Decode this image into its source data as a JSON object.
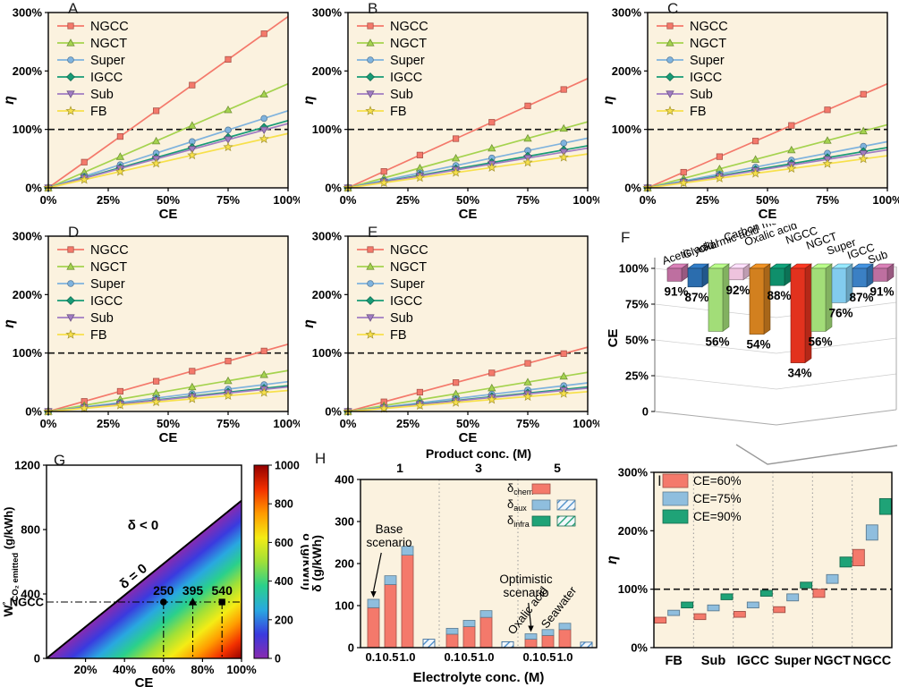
{
  "figure": {
    "background": "#ffffff",
    "plot_background": "#FBF2DF",
    "series_legend": [
      {
        "name": "NGCC",
        "color": "#F4796B",
        "marker": "square"
      },
      {
        "name": "NGCT",
        "color": "#A5D34F",
        "marker": "triangle-up"
      },
      {
        "name": "Super",
        "color": "#7FB3DE",
        "marker": "circle"
      },
      {
        "name": "IGCC",
        "color": "#189B76",
        "marker": "diamond"
      },
      {
        "name": "Sub",
        "color": "#A07CC2",
        "marker": "triangle-down"
      },
      {
        "name": "FB",
        "color": "#F7E04B",
        "marker": "star"
      }
    ]
  },
  "chart_data": [
    {
      "id": "A",
      "type": "line",
      "xlabel": "CE",
      "ylabel": "η",
      "xlim": [
        0,
        100
      ],
      "ylim": [
        0,
        300
      ],
      "xtick_vals": [
        0,
        25,
        50,
        75,
        100
      ],
      "xtick_labels": [
        "0%",
        "25%",
        "50%",
        "75%",
        "100%"
      ],
      "ytick_vals": [
        0,
        100,
        200,
        300
      ],
      "ytick_labels": [
        "0%",
        "100%",
        "200%",
        "300%"
      ],
      "reference_line_y": 100,
      "marker_xs": [
        15,
        30,
        45,
        60,
        75,
        90
      ],
      "series": [
        {
          "name": "NGCC",
          "y_at_ce100": 293
        },
        {
          "name": "NGCT",
          "y_at_ce100": 178
        },
        {
          "name": "Super",
          "y_at_ce100": 132
        },
        {
          "name": "IGCC",
          "y_at_ce100": 115
        },
        {
          "name": "Sub",
          "y_at_ce100": 110
        },
        {
          "name": "FB",
          "y_at_ce100": 93
        }
      ]
    },
    {
      "id": "B",
      "type": "line",
      "xlabel": "CE",
      "ylabel": "η",
      "xlim": [
        0,
        100
      ],
      "ylim": [
        0,
        300
      ],
      "xtick_vals": [
        0,
        25,
        50,
        75,
        100
      ],
      "xtick_labels": [
        "0%",
        "25%",
        "50%",
        "75%",
        "100%"
      ],
      "ytick_vals": [
        0,
        100,
        200,
        300
      ],
      "ytick_labels": [
        "0%",
        "100%",
        "200%",
        "300%"
      ],
      "reference_line_y": 100,
      "marker_xs": [
        15,
        30,
        45,
        60,
        75,
        90
      ],
      "series": [
        {
          "name": "NGCC",
          "y_at_ce100": 187
        },
        {
          "name": "NGCT",
          "y_at_ce100": 113
        },
        {
          "name": "Super",
          "y_at_ce100": 85
        },
        {
          "name": "IGCC",
          "y_at_ce100": 72
        },
        {
          "name": "Sub",
          "y_at_ce100": 68
        },
        {
          "name": "FB",
          "y_at_ce100": 58
        }
      ]
    },
    {
      "id": "C",
      "type": "line",
      "xlabel": "CE",
      "ylabel": "η",
      "xlim": [
        0,
        100
      ],
      "ylim": [
        0,
        300
      ],
      "xtick_vals": [
        0,
        25,
        50,
        75,
        100
      ],
      "xtick_labels": [
        "0%",
        "25%",
        "50%",
        "75%",
        "100%"
      ],
      "ytick_vals": [
        0,
        100,
        200,
        300
      ],
      "ytick_labels": [
        "0%",
        "100%",
        "200%",
        "300%"
      ],
      "reference_line_y": 100,
      "marker_xs": [
        15,
        30,
        45,
        60,
        75,
        90
      ],
      "series": [
        {
          "name": "NGCC",
          "y_at_ce100": 178
        },
        {
          "name": "NGCT",
          "y_at_ce100": 108
        },
        {
          "name": "Super",
          "y_at_ce100": 79
        },
        {
          "name": "IGCC",
          "y_at_ce100": 69
        },
        {
          "name": "Sub",
          "y_at_ce100": 65
        },
        {
          "name": "FB",
          "y_at_ce100": 55
        }
      ]
    },
    {
      "id": "D",
      "type": "line",
      "xlabel": "CE",
      "ylabel": "η",
      "xlim": [
        0,
        100
      ],
      "ylim": [
        0,
        300
      ],
      "xtick_vals": [
        0,
        25,
        50,
        75,
        100
      ],
      "xtick_labels": [
        "0%",
        "25%",
        "50%",
        "75%",
        "100%"
      ],
      "ytick_vals": [
        0,
        100,
        200,
        300
      ],
      "ytick_labels": [
        "0%",
        "100%",
        "200%",
        "300%"
      ],
      "reference_line_y": 100,
      "marker_xs": [
        15,
        30,
        45,
        60,
        75,
        90
      ],
      "series": [
        {
          "name": "NGCC",
          "y_at_ce100": 115
        },
        {
          "name": "NGCT",
          "y_at_ce100": 70
        },
        {
          "name": "Super",
          "y_at_ce100": 51
        },
        {
          "name": "IGCC",
          "y_at_ce100": 44
        },
        {
          "name": "Sub",
          "y_at_ce100": 42
        },
        {
          "name": "FB",
          "y_at_ce100": 36
        }
      ]
    },
    {
      "id": "E",
      "type": "line",
      "xlabel": "CE",
      "ylabel": "η",
      "xlim": [
        0,
        100
      ],
      "ylim": [
        0,
        300
      ],
      "xtick_vals": [
        0,
        25,
        50,
        75,
        100
      ],
      "xtick_labels": [
        "0%",
        "25%",
        "50%",
        "75%",
        "100%"
      ],
      "ytick_vals": [
        0,
        100,
        200,
        300
      ],
      "ytick_labels": [
        "0%",
        "100%",
        "200%",
        "300%"
      ],
      "reference_line_y": 100,
      "marker_xs": [
        15,
        30,
        45,
        60,
        75,
        90
      ],
      "series": [
        {
          "name": "NGCC",
          "y_at_ce100": 110
        },
        {
          "name": "NGCT",
          "y_at_ce100": 67
        },
        {
          "name": "Super",
          "y_at_ce100": 49
        },
        {
          "name": "IGCC",
          "y_at_ce100": 42
        },
        {
          "name": "Sub",
          "y_at_ce100": 40
        },
        {
          "name": "FB",
          "y_at_ce100": 34
        }
      ]
    },
    {
      "id": "F",
      "type": "bar3d",
      "ylabel": "CE",
      "ytick_vals": [
        0,
        25,
        50,
        75,
        100
      ],
      "ytick_labels": [
        "0",
        "25%",
        "50%",
        "75%",
        "100%"
      ],
      "bars": [
        {
          "label": "Acetic acid",
          "value": 91,
          "value_label": "91%",
          "color": "#BE6FA0"
        },
        {
          "label": "Glyoxal",
          "value": 87,
          "value_label": "87%",
          "color": "#2B6DAE"
        },
        {
          "label": "Formic acid",
          "value": 56,
          "value_label": "56%",
          "color": "#A2DD78"
        },
        {
          "label": "Carbon monoxide",
          "value": 92,
          "value_label": "92%",
          "color": "#EEC3DD"
        },
        {
          "label": "Oxalic acid",
          "value": 54,
          "value_label": "54%",
          "color": "#D2801F"
        },
        {
          "label": "",
          "value": 88,
          "value_label": "88%",
          "color": "#0F8F6B"
        },
        {
          "label": "NGCC",
          "value": 34,
          "value_label": "34%",
          "color": "#E2321E"
        },
        {
          "label": "NGCT",
          "value": 56,
          "value_label": "56%",
          "color": "#A2DD78"
        },
        {
          "label": "Super",
          "value": 76,
          "value_label": "76%",
          "color": "#82CBEE"
        },
        {
          "label": "IGCC",
          "value": 87,
          "value_label": "87%",
          "color": "#3B80C4"
        },
        {
          "label": "Sub",
          "value": 91,
          "value_label": "91%",
          "color": "#BE6FA0"
        }
      ]
    },
    {
      "id": "G",
      "type": "heatmap-triangle",
      "xlabel": "CE",
      "ylabel_main": "W",
      "ylabel_sup": "°",
      "ylabel_sub": "CO₂ emitted",
      "ylabel_unit": " (g/kWh)",
      "xlim": [
        0,
        100
      ],
      "ylim": [
        0,
        1200
      ],
      "xtick_vals": [
        20,
        40,
        60,
        80,
        100
      ],
      "xtick_labels": [
        "20%",
        "40%",
        "60%",
        "80%",
        "100%"
      ],
      "ytick_vals": [
        0,
        400,
        800,
        1200
      ],
      "ytick_labels": [
        "0",
        "400",
        "800",
        "1200"
      ],
      "diagonal_end_y": 980,
      "label_above": "δ < 0",
      "label_on_line": "δ = 0",
      "ngcc_line": {
        "label": "NGCC",
        "y": 350,
        "points": [
          {
            "x": 60,
            "value": "250",
            "marker": "circle"
          },
          {
            "x": 75,
            "value": "395",
            "marker": "triangle-up"
          },
          {
            "x": 90,
            "value": "540",
            "marker": "square"
          }
        ]
      },
      "colorbar": {
        "label": "δ (g/kWh)",
        "tick_vals": [
          0,
          200,
          400,
          600,
          800,
          1000
        ],
        "tick_labels": [
          "0",
          "200",
          "400",
          "600",
          "800",
          "1000"
        ],
        "stops": [
          "#8A2BAF",
          "#3A3ADF",
          "#29A8E0",
          "#2AD08C",
          "#9FE038",
          "#F4EC15",
          "#FF9B00",
          "#F23000",
          "#930000"
        ]
      }
    },
    {
      "id": "H",
      "type": "stacked-bar",
      "xlabel": "Electrolyte conc. (M)",
      "ylabel": "δ (g/kWh)",
      "top_axis_label": "Product conc. (M)",
      "ytick_vals": [
        0,
        100,
        200,
        300,
        400
      ],
      "ytick_labels": [
        "0",
        "100",
        "200",
        "300",
        "400"
      ],
      "ylim": [
        0,
        400
      ],
      "legend": [
        {
          "sym": "δ",
          "sub": "chem",
          "color": "#F4796B",
          "hatched": false
        },
        {
          "sym": "δ",
          "sub": "aux",
          "color": "#8FBEDE",
          "hatched": true
        },
        {
          "sym": "δ",
          "sub": "infra",
          "color": "#1FA377",
          "hatched": true
        }
      ],
      "legend_col_labels": [
        "Oxalic acid",
        "Seawater"
      ],
      "colors": {
        "chem": "#F4796B",
        "aux": "#8FBEDE",
        "infra": "#1FA377"
      },
      "groups": [
        {
          "label": "1",
          "x_labels": [
            "0.1",
            "0.5",
            "1.0"
          ],
          "chem": [
            95,
            150,
            220
          ],
          "aux": [
            20,
            21,
            21
          ],
          "seawater": 20
        },
        {
          "label": "3",
          "x_labels": [
            "0.1",
            "0.5",
            "1.0"
          ],
          "chem": [
            32,
            50,
            72
          ],
          "aux": [
            14,
            15,
            16
          ],
          "seawater": 14
        },
        {
          "label": "5",
          "x_labels": [
            "0.1",
            "0.5",
            "1.0"
          ],
          "chem": [
            20,
            29,
            43
          ],
          "aux": [
            13,
            14,
            15
          ],
          "seawater": 13
        }
      ],
      "annotations": [
        {
          "line1": "Base",
          "line2": "scenario",
          "group": 0,
          "bar": 0
        },
        {
          "line1": "Optimistic",
          "line2": "scenario",
          "group": 2,
          "bar": 0
        }
      ]
    },
    {
      "id": "I",
      "type": "range-bar",
      "ylabel": "η",
      "ylim": [
        0,
        300
      ],
      "ytick_vals": [
        0,
        100,
        200,
        300
      ],
      "ytick_labels": [
        "0%",
        "100%",
        "200%",
        "300%"
      ],
      "reference_line_y": 100,
      "legend": [
        {
          "name": "CE=60%",
          "color": "#F4796B"
        },
        {
          "name": "CE=75%",
          "color": "#8FBEDE"
        },
        {
          "name": "CE=90%",
          "color": "#1FA377"
        }
      ],
      "categories": [
        "FB",
        "Sub",
        "IGCC",
        "Super",
        "NGCT",
        "NGCC"
      ],
      "series": [
        {
          "name": "CE=60%",
          "color": "#F4796B",
          "ranges": [
            [
              42,
              52
            ],
            [
              48,
              58
            ],
            [
              52,
              62
            ],
            [
              60,
              70
            ],
            [
              86,
              100
            ],
            [
              140,
              168
            ]
          ]
        },
        {
          "name": "CE=75%",
          "color": "#8FBEDE",
          "ranges": [
            [
              55,
              64
            ],
            [
              63,
              73
            ],
            [
              68,
              78
            ],
            [
              80,
              92
            ],
            [
              110,
              125
            ],
            [
              184,
              210
            ]
          ]
        },
        {
          "name": "CE=90%",
          "color": "#1FA377",
          "ranges": [
            [
              68,
              78
            ],
            [
              82,
              92
            ],
            [
              88,
              98
            ],
            [
              102,
              112
            ],
            [
              138,
              155
            ],
            [
              228,
              255
            ]
          ]
        }
      ]
    }
  ]
}
